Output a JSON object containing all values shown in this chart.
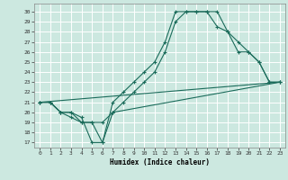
{
  "xlabel": "Humidex (Indice chaleur)",
  "background_color": "#cce8e0",
  "grid_color": "#ffffff",
  "line_color": "#1a6b5a",
  "xlim": [
    -0.5,
    23.5
  ],
  "ylim": [
    16.5,
    30.8
  ],
  "yticks": [
    17,
    18,
    19,
    20,
    21,
    22,
    23,
    24,
    25,
    26,
    27,
    28,
    29,
    30
  ],
  "xticks": [
    0,
    1,
    2,
    3,
    4,
    5,
    6,
    7,
    8,
    9,
    10,
    11,
    12,
    13,
    14,
    15,
    16,
    17,
    18,
    19,
    20,
    21,
    22,
    23
  ],
  "series": [
    {
      "x": [
        0,
        1,
        2,
        3,
        4,
        5,
        6,
        7,
        8,
        9,
        10,
        11,
        12,
        13,
        14,
        15,
        16,
        17,
        18,
        19,
        20,
        21,
        22,
        23
      ],
      "y": [
        21,
        21,
        20,
        20,
        19.5,
        17,
        17,
        21,
        22,
        23,
        24,
        25,
        27,
        30,
        30,
        30,
        30,
        30,
        28,
        27,
        26,
        25,
        23,
        23
      ],
      "marker": true
    },
    {
      "x": [
        0,
        1,
        2,
        3,
        4,
        5,
        6,
        7,
        8,
        9,
        10,
        11,
        12,
        13,
        14,
        15,
        16,
        17,
        18,
        19,
        20,
        21,
        22,
        23
      ],
      "y": [
        21,
        21,
        20,
        19.5,
        19,
        19,
        17,
        20,
        21,
        22,
        23,
        24,
        26,
        29,
        30,
        30,
        30,
        28.5,
        28,
        26,
        26,
        25,
        23,
        23
      ],
      "marker": true
    },
    {
      "x": [
        0,
        1,
        2,
        3,
        4,
        5,
        6,
        7,
        23
      ],
      "y": [
        21,
        21,
        20,
        20,
        19,
        19,
        19,
        20,
        23
      ],
      "marker": true
    },
    {
      "x": [
        0,
        23
      ],
      "y": [
        21,
        23
      ],
      "marker": false
    }
  ]
}
